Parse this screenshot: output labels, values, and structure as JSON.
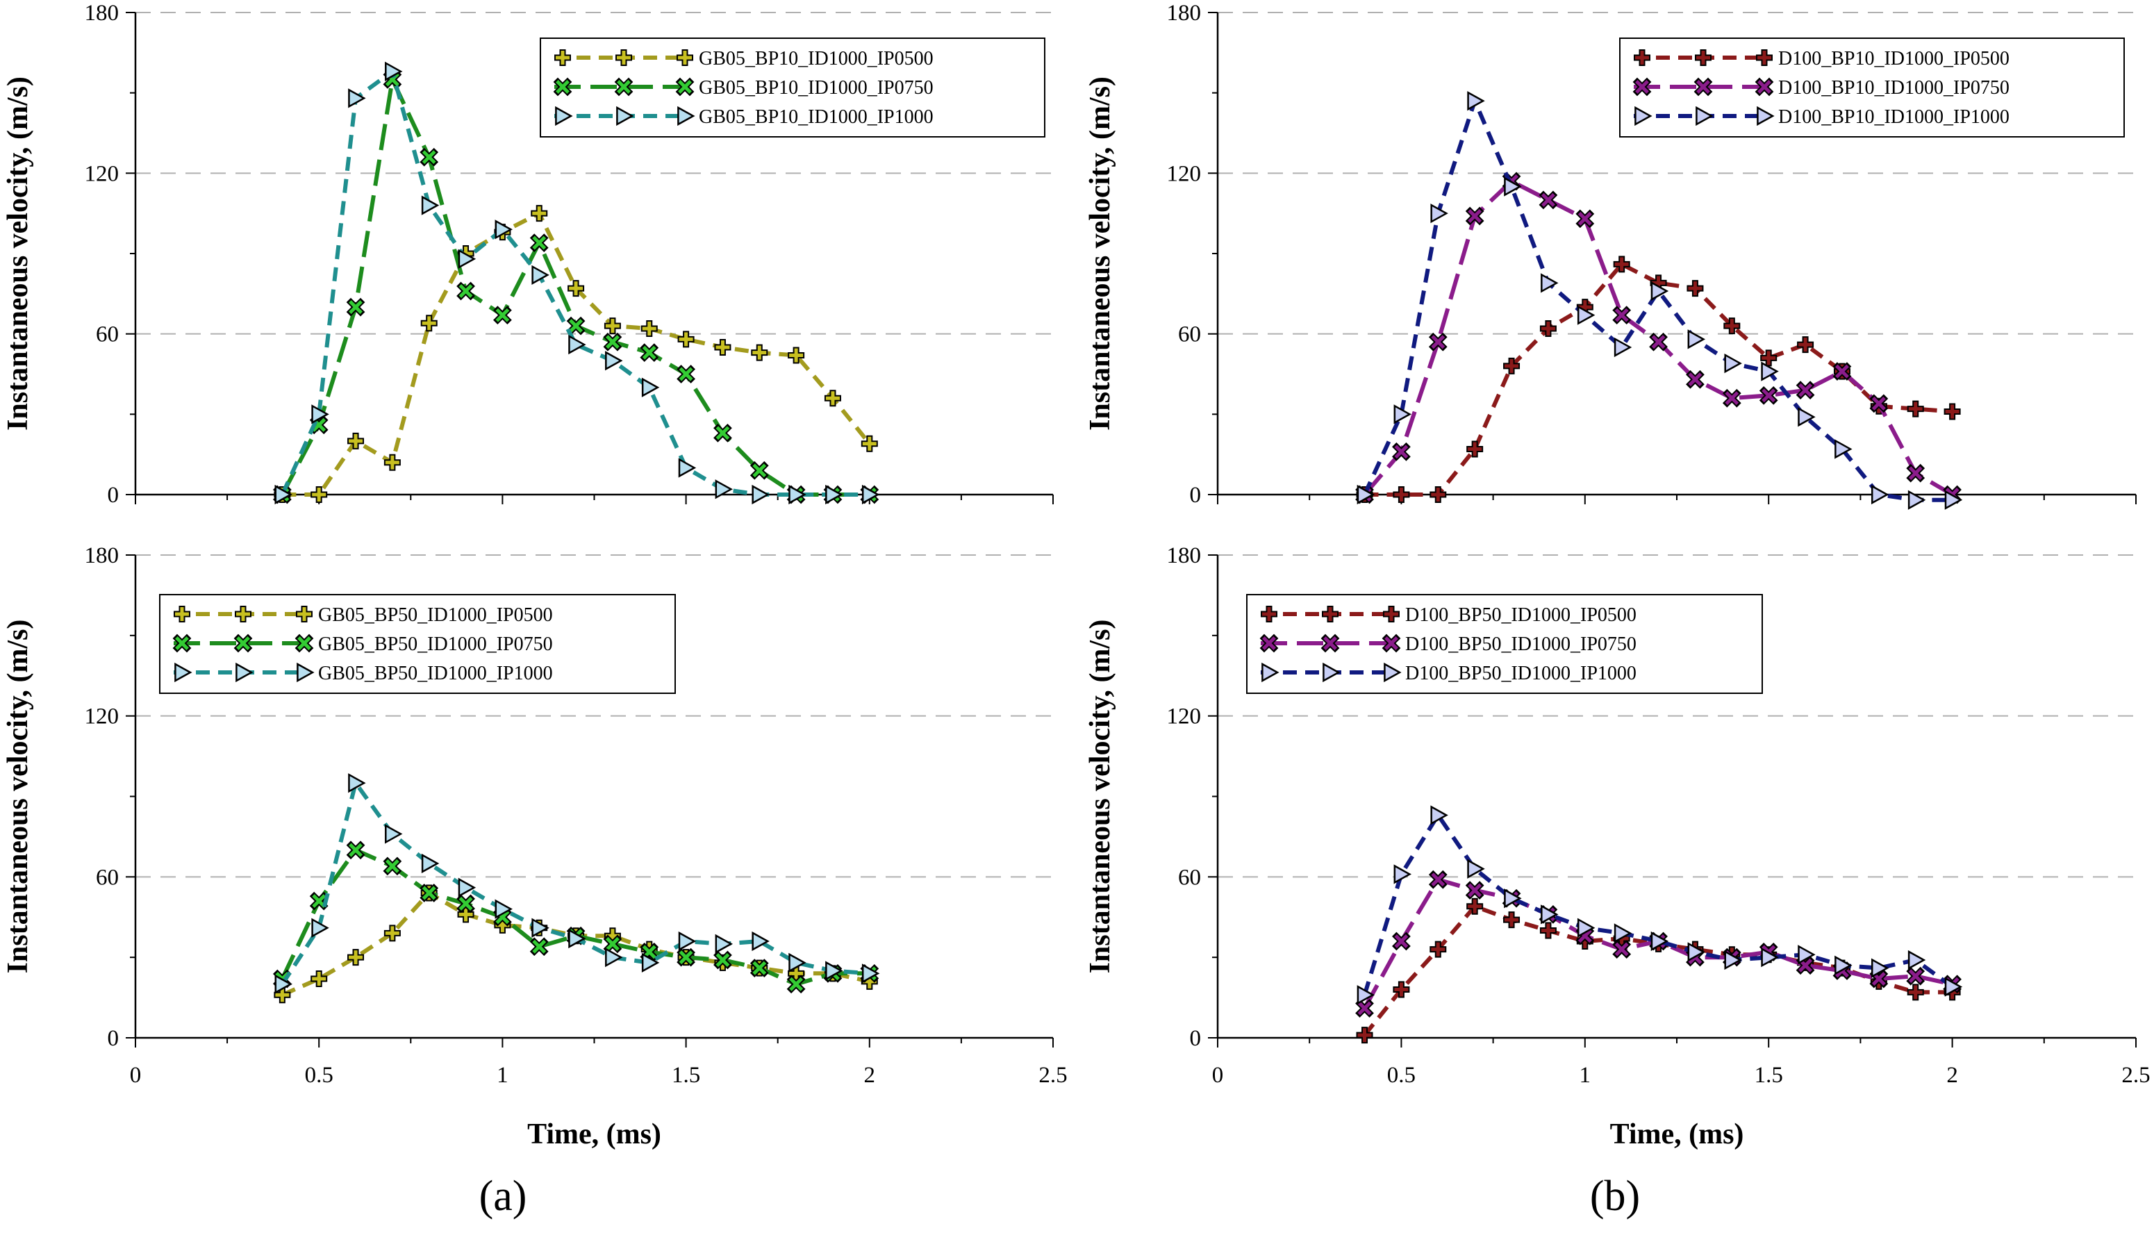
{
  "panel_labels": {
    "a": "(a)",
    "b": "(b)"
  },
  "chart_data": [
    {
      "id": "a-top",
      "type": "line",
      "xlabel": "",
      "ylabel": "Instantaneous velocity, (m/s)",
      "xlim": [
        0,
        2.5
      ],
      "ylim": [
        0,
        180
      ],
      "xticks": [],
      "yticks": [
        "0",
        "60",
        "120",
        "180"
      ],
      "legend_position": "top-right",
      "series": [
        {
          "name": "GB05_BP10_ID1000_IP0500",
          "color": "#a39b1e",
          "fill": "#c8c020",
          "marker": "plus",
          "dash": "dash",
          "x": [
            0.4,
            0.5,
            0.6,
            0.7,
            0.8,
            0.9,
            1.0,
            1.1,
            1.2,
            1.3,
            1.4,
            1.5,
            1.6,
            1.7,
            1.8,
            1.9,
            2.0
          ],
          "y": [
            0,
            0,
            20,
            12,
            64,
            90,
            98,
            105,
            77,
            63,
            62,
            58,
            55,
            53,
            52,
            36,
            19
          ]
        },
        {
          "name": "GB05_BP10_ID1000_IP0750",
          "color": "#1d8c1d",
          "fill": "#33cc33",
          "marker": "x",
          "dash": "longdash",
          "x": [
            0.4,
            0.5,
            0.6,
            0.7,
            0.8,
            0.9,
            1.0,
            1.1,
            1.2,
            1.3,
            1.4,
            1.5,
            1.6,
            1.7,
            1.8,
            1.9,
            2.0
          ],
          "y": [
            0,
            26,
            70,
            155,
            126,
            76,
            67,
            94,
            63,
            57,
            53,
            45,
            23,
            9,
            0,
            0,
            0
          ]
        },
        {
          "name": "GB05_BP10_ID1000_IP1000",
          "color": "#1f8f8f",
          "fill": "#b8dff0",
          "marker": "tri",
          "dash": "dash",
          "x": [
            0.4,
            0.5,
            0.6,
            0.7,
            0.8,
            0.9,
            1.0,
            1.1,
            1.2,
            1.3,
            1.4,
            1.5,
            1.6,
            1.7,
            1.8,
            1.9,
            2.0
          ],
          "y": [
            0,
            30,
            148,
            158,
            108,
            88,
            99,
            82,
            56,
            50,
            40,
            10,
            2,
            0,
            0,
            0,
            0
          ]
        }
      ]
    },
    {
      "id": "a-bottom",
      "type": "line",
      "xlabel": "Time, (ms)",
      "ylabel": "Instantaneous velocity, (m/s)",
      "xlim": [
        0,
        2.5
      ],
      "ylim": [
        0,
        180
      ],
      "xticks": [
        "0",
        "0.5",
        "1",
        "1.5",
        "2",
        "2.5"
      ],
      "yticks": [
        "0",
        "60",
        "120",
        "180"
      ],
      "legend_position": "top-left",
      "series": [
        {
          "name": "GB05_BP50_ID1000_IP0500",
          "color": "#a39b1e",
          "fill": "#c8c020",
          "marker": "plus",
          "dash": "dash",
          "x": [
            0.4,
            0.5,
            0.6,
            0.7,
            0.8,
            0.9,
            1.0,
            1.1,
            1.2,
            1.3,
            1.4,
            1.5,
            1.6,
            1.7,
            1.8,
            1.9,
            2.0
          ],
          "y": [
            16,
            22,
            30,
            39,
            54,
            46,
            42,
            41,
            38,
            38,
            33,
            30,
            28,
            26,
            24,
            24,
            21
          ]
        },
        {
          "name": "GB05_BP50_ID1000_IP0750",
          "color": "#1d8c1d",
          "fill": "#33cc33",
          "marker": "x",
          "dash": "longdash",
          "x": [
            0.4,
            0.5,
            0.6,
            0.7,
            0.8,
            0.9,
            1.0,
            1.1,
            1.2,
            1.3,
            1.4,
            1.5,
            1.6,
            1.7,
            1.8,
            1.9,
            2.0
          ],
          "y": [
            22,
            51,
            70,
            64,
            54,
            50,
            45,
            34,
            38,
            35,
            32,
            30,
            29,
            26,
            20,
            24,
            24
          ]
        },
        {
          "name": "GB05_BP50_ID1000_IP1000",
          "color": "#1f8f8f",
          "fill": "#b8dff0",
          "marker": "tri",
          "dash": "dash",
          "x": [
            0.4,
            0.5,
            0.6,
            0.7,
            0.8,
            0.9,
            1.0,
            1.1,
            1.2,
            1.3,
            1.4,
            1.5,
            1.6,
            1.7,
            1.8,
            1.9,
            2.0
          ],
          "y": [
            20,
            41,
            95,
            76,
            65,
            56,
            48,
            41,
            37,
            30,
            28,
            36,
            35,
            36,
            28,
            25,
            24
          ]
        }
      ]
    },
    {
      "id": "b-top",
      "type": "line",
      "xlabel": "",
      "ylabel": "Instantaneous velocity, (m/s)",
      "xlim": [
        0,
        2.5
      ],
      "ylim": [
        0,
        180
      ],
      "xticks": [],
      "yticks": [
        "0",
        "60",
        "120",
        "180"
      ],
      "legend_position": "top-right",
      "series": [
        {
          "name": "D100_BP10_ID1000_IP0500",
          "color": "#8b1a1a",
          "fill": "#8b1a1a",
          "marker": "plus",
          "dash": "dash",
          "x": [
            0.4,
            0.5,
            0.6,
            0.7,
            0.8,
            0.9,
            1.0,
            1.1,
            1.2,
            1.3,
            1.4,
            1.5,
            1.6,
            1.7,
            1.8,
            1.9,
            2.0
          ],
          "y": [
            0,
            0,
            0,
            17,
            48,
            62,
            70,
            86,
            79,
            77,
            63,
            51,
            56,
            46,
            33,
            32,
            31
          ]
        },
        {
          "name": "D100_BP10_ID1000_IP0750",
          "color": "#8b1c8b",
          "fill": "#8b1c8b",
          "marker": "x",
          "dash": "longdash",
          "x": [
            0.4,
            0.5,
            0.6,
            0.7,
            0.8,
            0.9,
            1.0,
            1.1,
            1.2,
            1.3,
            1.4,
            1.5,
            1.6,
            1.7,
            1.8,
            1.9,
            2.0
          ],
          "y": [
            0,
            16,
            57,
            104,
            117,
            110,
            103,
            67,
            57,
            43,
            36,
            37,
            39,
            46,
            34,
            8,
            0
          ]
        },
        {
          "name": "D100_BP10_ID1000_IP1000",
          "color": "#101a80",
          "fill": "#c8cff5",
          "marker": "tri",
          "dash": "dash",
          "x": [
            0.4,
            0.5,
            0.6,
            0.7,
            0.8,
            0.9,
            1.0,
            1.1,
            1.2,
            1.3,
            1.4,
            1.5,
            1.6,
            1.7,
            1.8,
            1.9,
            2.0
          ],
          "y": [
            0,
            30,
            105,
            147,
            115,
            79,
            67,
            55,
            76,
            58,
            49,
            46,
            29,
            17,
            0,
            -2,
            -2
          ]
        }
      ]
    },
    {
      "id": "b-bottom",
      "type": "line",
      "xlabel": "Time, (ms)",
      "ylabel": "Instantaneous velocity, (m/s)",
      "xlim": [
        0,
        2.5
      ],
      "ylim": [
        0,
        180
      ],
      "xticks": [
        "0",
        "0.5",
        "1",
        "1.5",
        "2",
        "2.5"
      ],
      "yticks": [
        "0",
        "60",
        "120",
        "180"
      ],
      "legend_position": "top-left",
      "series": [
        {
          "name": "D100_BP50_ID1000_IP0500",
          "color": "#8b1a1a",
          "fill": "#8b1a1a",
          "marker": "plus",
          "dash": "dash",
          "x": [
            0.4,
            0.5,
            0.6,
            0.7,
            0.8,
            0.9,
            1.0,
            1.1,
            1.2,
            1.3,
            1.4,
            1.5,
            1.6,
            1.7,
            1.8,
            1.9,
            2.0
          ],
          "y": [
            1,
            18,
            33,
            49,
            44,
            40,
            36,
            37,
            35,
            33,
            31,
            31,
            28,
            26,
            21,
            17,
            17
          ]
        },
        {
          "name": "D100_BP50_ID1000_IP0750",
          "color": "#8b1c8b",
          "fill": "#8b1c8b",
          "marker": "x",
          "dash": "longdash",
          "x": [
            0.4,
            0.5,
            0.6,
            0.7,
            0.8,
            0.9,
            1.0,
            1.1,
            1.2,
            1.3,
            1.4,
            1.5,
            1.6,
            1.7,
            1.8,
            1.9,
            2.0
          ],
          "y": [
            11,
            36,
            59,
            55,
            52,
            46,
            38,
            33,
            36,
            30,
            30,
            32,
            27,
            25,
            22,
            23,
            20
          ]
        },
        {
          "name": "D100_BP50_ID1000_IP1000",
          "color": "#101a80",
          "fill": "#c8cff5",
          "marker": "tri",
          "dash": "dash",
          "x": [
            0.4,
            0.5,
            0.6,
            0.7,
            0.8,
            0.9,
            1.0,
            1.1,
            1.2,
            1.3,
            1.4,
            1.5,
            1.6,
            1.7,
            1.8,
            1.9,
            2.0
          ],
          "y": [
            16,
            61,
            83,
            63,
            52,
            46,
            41,
            39,
            36,
            32,
            29,
            30,
            31,
            27,
            26,
            29,
            19
          ]
        }
      ]
    }
  ]
}
